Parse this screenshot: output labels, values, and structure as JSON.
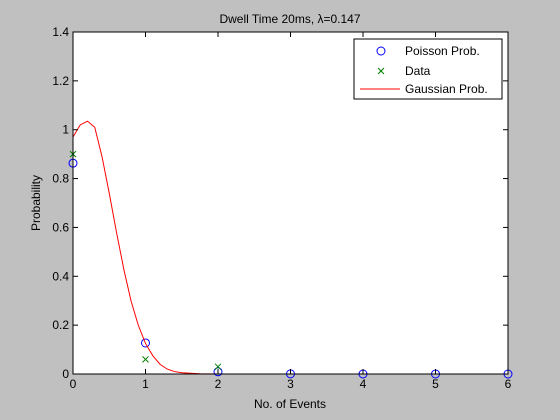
{
  "chart_data": {
    "type": "scatter",
    "title": "Dwell Time 20ms, λ=0.147",
    "xlabel": "No. of Events",
    "ylabel": "Probability",
    "xlim": [
      0,
      6
    ],
    "ylim": [
      0,
      1.4
    ],
    "xticks": [
      "0",
      "1",
      "2",
      "3",
      "4",
      "5",
      "6"
    ],
    "yticks": [
      "0",
      "0.2",
      "0.4",
      "0.6",
      "0.8",
      "1",
      "1.2",
      "1.4"
    ],
    "grid": false,
    "legend_position": "top-right",
    "series": [
      {
        "name": "Poisson Prob.",
        "marker": "circle",
        "color": "#0000ff",
        "x": [
          0,
          1,
          2,
          3,
          4,
          5,
          6
        ],
        "y": [
          0.863,
          0.127,
          0.009,
          0.0005,
          2e-05,
          0.0,
          0.0
        ]
      },
      {
        "name": "Data",
        "marker": "x",
        "color": "#008000",
        "x": [
          0,
          1,
          2
        ],
        "y": [
          0.9,
          0.06,
          0.03
        ]
      },
      {
        "name": "Gaussian Prob.",
        "marker": "line",
        "color": "#ff0000",
        "x": [
          0,
          0.1,
          0.2,
          0.3,
          0.4,
          0.5,
          0.6,
          0.7,
          0.8,
          0.9,
          1.0,
          1.1,
          1.2,
          1.3,
          1.4,
          1.5,
          1.75,
          2.0,
          2.5,
          3.0,
          3.5
        ],
        "y": [
          0.97,
          1.02,
          1.035,
          1.01,
          0.89,
          0.74,
          0.58,
          0.43,
          0.3,
          0.2,
          0.125,
          0.075,
          0.04,
          0.02,
          0.01,
          0.005,
          0.001,
          0.0,
          0.0,
          0.0,
          0.0
        ]
      }
    ]
  }
}
